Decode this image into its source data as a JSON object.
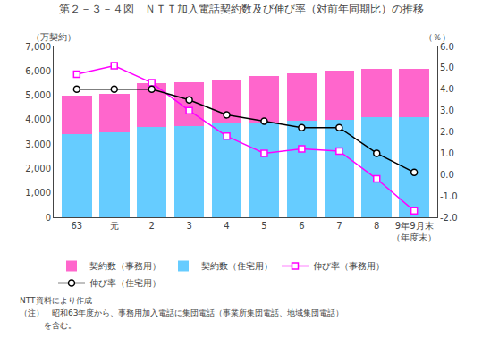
{
  "chart_data": {
    "type": "bar",
    "title": "第２－３－４図　ＮＴＴ加入電話契約数及び伸び率（対前年同期比）の推移",
    "categories": [
      "63",
      "元",
      "2",
      "3",
      "4",
      "5",
      "6",
      "7",
      "8",
      "9年9月末\n（年度末）"
    ],
    "stacked": true,
    "series": [
      {
        "name": "契約数（住宅用）",
        "type": "bar",
        "color": "#66CCFF",
        "values": [
          3400,
          3500,
          3700,
          3750,
          3850,
          3900,
          3950,
          4000,
          4100,
          4100
        ]
      },
      {
        "name": "契約数（事務用）",
        "type": "bar",
        "color": "#FF66CC",
        "values": [
          1600,
          1550,
          1800,
          1800,
          1800,
          1900,
          1950,
          2000,
          2000,
          2000
        ]
      },
      {
        "name": "伸び率（事務用）",
        "type": "line",
        "axis": "y2",
        "color": "#FF00FF",
        "marker": "square",
        "line_style": "solid",
        "values": [
          4.7,
          5.1,
          4.3,
          3.0,
          1.8,
          1.0,
          1.2,
          1.1,
          -0.2,
          -1.7
        ]
      },
      {
        "name": "伸び率（住宅用）",
        "type": "line",
        "axis": "y2",
        "color": "#000000",
        "marker": "circle",
        "line_style": "solid",
        "values": [
          4.0,
          4.0,
          4.0,
          3.5,
          2.8,
          2.5,
          2.2,
          2.2,
          1.0,
          0.1
        ]
      }
    ],
    "ylabel": "（万契約）",
    "y2label": "（％）",
    "ylim": [
      0,
      7000
    ],
    "yticks": [
      0,
      {
        "value": 1000,
        "label": "1,000"
      },
      {
        "value": 2000,
        "label": "2,000"
      },
      {
        "value": 3000,
        "label": "3,000"
      },
      {
        "value": 4000,
        "label": "4,000"
      },
      {
        "value": 5000,
        "label": "5,000"
      },
      {
        "value": 6000,
        "label": "6,000"
      },
      {
        "value": 7000,
        "label": "7,000"
      }
    ],
    "y2lim": [
      -2.0,
      6.0
    ],
    "y2ticks": [
      {
        "value": -2.0,
        "label": "-2.0"
      },
      {
        "value": -1.0,
        "label": "-1.0"
      },
      {
        "value": 0.0,
        "label": "0.0"
      },
      {
        "value": 1.0,
        "label": "1.0"
      },
      {
        "value": 2.0,
        "label": "2.0"
      },
      {
        "value": 3.0,
        "label": "3.0"
      },
      {
        "value": 4.0,
        "label": "4.0"
      },
      {
        "value": 5.0,
        "label": "5.0"
      },
      {
        "value": 6.0,
        "label": "6.0"
      }
    ],
    "grid": false,
    "legend": "bottom",
    "annotations": [
      "NTT資料により作成",
      "（注）　昭和63年度から、事務用加入電話に集団電話（事業所集団電話、地域集団電話）",
      "　　　を含む。"
    ]
  }
}
